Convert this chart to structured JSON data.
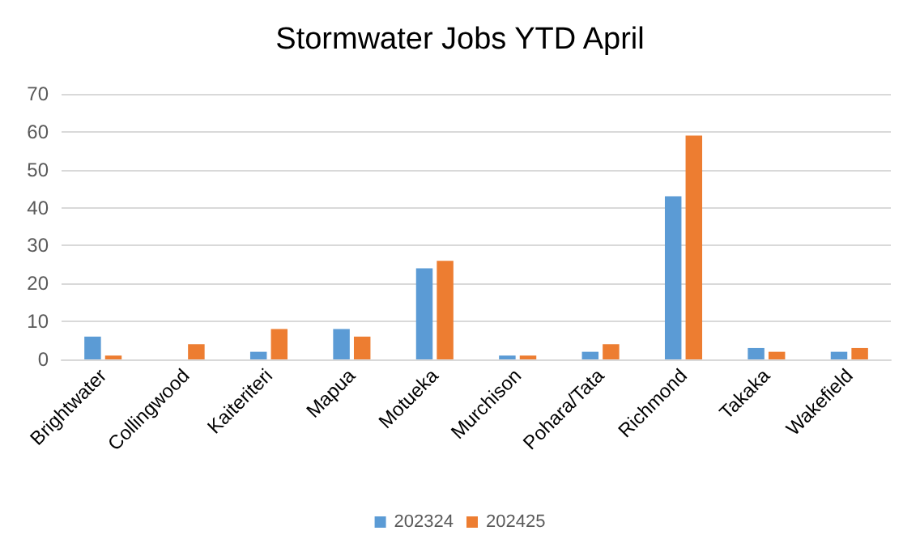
{
  "chart_data": {
    "type": "bar",
    "title": "Stormwater Jobs YTD April",
    "categories": [
      "Brightwater",
      "Collingwood",
      "Kaiteriteri",
      "Mapua",
      "Motueka",
      "Murchison",
      "Pohara/Tata",
      "Richmond",
      "Takaka",
      "Wakefield"
    ],
    "series": [
      {
        "name": "202324",
        "color": "#5b9bd5",
        "values": [
          6,
          0,
          2,
          8,
          24,
          1,
          2,
          43,
          3,
          2
        ]
      },
      {
        "name": "202425",
        "color": "#ed7d31",
        "values": [
          1,
          4,
          8,
          6,
          26,
          1,
          4,
          59,
          2,
          3
        ]
      }
    ],
    "ylim": [
      0,
      70
    ],
    "yticks": [
      0,
      10,
      20,
      30,
      40,
      50,
      60,
      70
    ],
    "grid": "y",
    "legend": "bottom"
  }
}
